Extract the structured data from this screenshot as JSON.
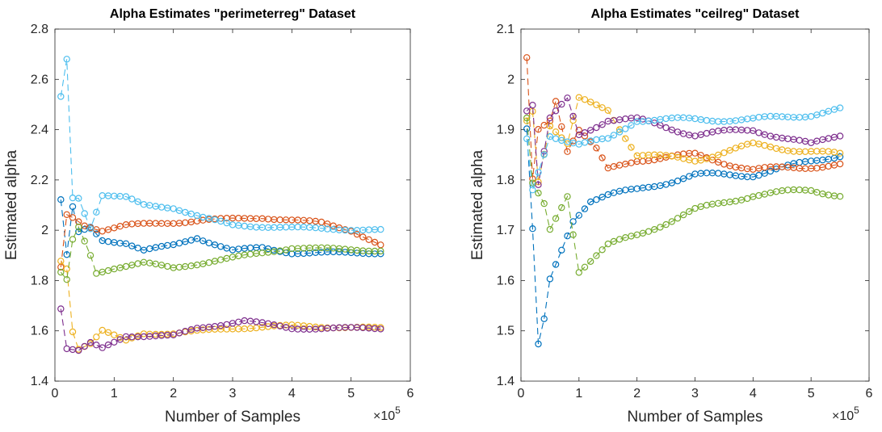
{
  "chart_data": [
    {
      "type": "line",
      "title": "Alpha Estimates \"perimeterreg\" Dataset",
      "xlabel": "Number of Samples",
      "ylabel": "Estimated alpha",
      "x_exponent_label": "×10",
      "x_exponent": "5",
      "xlim": [
        0,
        6
      ],
      "ylim": [
        1.4,
        2.8
      ],
      "xticks": [
        "0",
        "1",
        "2",
        "3",
        "4",
        "5",
        "6"
      ],
      "yticks": [
        "1.4",
        "1.6",
        "1.8",
        "2",
        "2.2",
        "2.4",
        "2.6",
        "2.8"
      ],
      "x_units_per_tick": 100000,
      "grid": false,
      "marker": "circle",
      "line_style": "dashed",
      "series": [
        {
          "color": "#0072BD",
          "keypoints": [
            [
              10000,
              2.12
            ],
            [
              20000,
              1.9
            ],
            [
              30000,
              2.09
            ],
            [
              40000,
              1.99
            ],
            [
              60000,
              2.01
            ],
            [
              80000,
              1.96
            ],
            [
              120000,
              1.95
            ],
            [
              150000,
              1.92
            ],
            [
              200000,
              1.94
            ],
            [
              240000,
              1.97
            ],
            [
              300000,
              1.92
            ],
            [
              350000,
              1.93
            ],
            [
              400000,
              1.91
            ],
            [
              550000,
              1.91
            ]
          ]
        },
        {
          "color": "#D95319",
          "keypoints": [
            [
              10000,
              1.85
            ],
            [
              20000,
              2.06
            ],
            [
              30000,
              2.05
            ],
            [
              50000,
              2.02
            ],
            [
              80000,
              2.0
            ],
            [
              120000,
              2.02
            ],
            [
              200000,
              2.03
            ],
            [
              250000,
              2.04
            ],
            [
              350000,
              2.05
            ],
            [
              450000,
              2.03
            ],
            [
              500000,
              2.0
            ],
            [
              550000,
              1.94
            ]
          ]
        },
        {
          "color": "#EDB120",
          "keypoints": [
            [
              10000,
              1.88
            ],
            [
              20000,
              1.85
            ],
            [
              30000,
              1.6
            ],
            [
              40000,
              1.53
            ],
            [
              60000,
              1.55
            ],
            [
              80000,
              1.6
            ],
            [
              120000,
              1.56
            ],
            [
              150000,
              1.59
            ],
            [
              200000,
              1.59
            ],
            [
              300000,
              1.61
            ],
            [
              400000,
              1.62
            ],
            [
              550000,
              1.61
            ]
          ]
        },
        {
          "color": "#7E2F8E",
          "keypoints": [
            [
              10000,
              1.69
            ],
            [
              20000,
              1.53
            ],
            [
              40000,
              1.52
            ],
            [
              60000,
              1.55
            ],
            [
              80000,
              1.53
            ],
            [
              120000,
              1.58
            ],
            [
              200000,
              1.58
            ],
            [
              240000,
              1.61
            ],
            [
              320000,
              1.64
            ],
            [
              400000,
              1.61
            ],
            [
              550000,
              1.61
            ]
          ]
        },
        {
          "color": "#77AC30",
          "keypoints": [
            [
              10000,
              1.83
            ],
            [
              20000,
              1.8
            ],
            [
              30000,
              1.96
            ],
            [
              40000,
              2.01
            ],
            [
              60000,
              1.9
            ],
            [
              70000,
              1.83
            ],
            [
              100000,
              1.85
            ],
            [
              150000,
              1.87
            ],
            [
              200000,
              1.85
            ],
            [
              300000,
              1.89
            ],
            [
              400000,
              1.93
            ],
            [
              550000,
              1.92
            ]
          ]
        },
        {
          "color": "#4DBEEE",
          "keypoints": [
            [
              10000,
              2.53
            ],
            [
              20000,
              2.68
            ],
            [
              30000,
              2.13
            ],
            [
              40000,
              2.13
            ],
            [
              60000,
              2.01
            ],
            [
              80000,
              2.14
            ],
            [
              120000,
              2.13
            ],
            [
              150000,
              2.1
            ],
            [
              200000,
              2.09
            ],
            [
              250000,
              2.05
            ],
            [
              300000,
              2.02
            ],
            [
              400000,
              2.01
            ],
            [
              550000,
              2.0
            ]
          ]
        }
      ]
    },
    {
      "type": "line",
      "title": "Alpha Estimates \"ceilreg\" Dataset",
      "xlabel": "Number of Samples",
      "ylabel": "Estimated alpha",
      "x_exponent_label": "×10",
      "x_exponent": "5",
      "xlim": [
        0,
        6
      ],
      "ylim": [
        1.4,
        2.1
      ],
      "xticks": [
        "0",
        "1",
        "2",
        "3",
        "4",
        "5",
        "6"
      ],
      "yticks": [
        "1.4",
        "1.5",
        "1.6",
        "1.7",
        "1.8",
        "1.9",
        "2",
        "2.1"
      ],
      "x_units_per_tick": 100000,
      "grid": false,
      "marker": "circle",
      "line_style": "dashed",
      "series": [
        {
          "color": "#0072BD",
          "keypoints": [
            [
              10000,
              1.9
            ],
            [
              20000,
              1.7
            ],
            [
              30000,
              1.47
            ],
            [
              40000,
              1.52
            ],
            [
              50000,
              1.6
            ],
            [
              70000,
              1.66
            ],
            [
              90000,
              1.72
            ],
            [
              120000,
              1.76
            ],
            [
              150000,
              1.77
            ],
            [
              200000,
              1.78
            ],
            [
              300000,
              1.81
            ],
            [
              400000,
              1.81
            ],
            [
              550000,
              1.85
            ]
          ]
        },
        {
          "color": "#D95319",
          "keypoints": [
            [
              10000,
              2.04
            ],
            [
              20000,
              1.8
            ],
            [
              30000,
              1.9
            ],
            [
              50000,
              1.92
            ],
            [
              60000,
              1.96
            ],
            [
              80000,
              1.86
            ],
            [
              100000,
              1.9
            ],
            [
              130000,
              1.86
            ],
            [
              150000,
              1.82
            ],
            [
              200000,
              1.84
            ],
            [
              300000,
              1.85
            ],
            [
              400000,
              1.82
            ],
            [
              550000,
              1.83
            ]
          ]
        },
        {
          "color": "#EDB120",
          "keypoints": [
            [
              10000,
              1.92
            ],
            [
              20000,
              1.94
            ],
            [
              30000,
              1.8
            ],
            [
              50000,
              1.91
            ],
            [
              80000,
              1.87
            ],
            [
              100000,
              1.96
            ],
            [
              150000,
              1.94
            ],
            [
              200000,
              1.85
            ],
            [
              300000,
              1.84
            ],
            [
              400000,
              1.87
            ],
            [
              550000,
              1.85
            ]
          ]
        },
        {
          "color": "#7E2F8E",
          "keypoints": [
            [
              10000,
              1.94
            ],
            [
              20000,
              1.95
            ],
            [
              30000,
              1.79
            ],
            [
              50000,
              1.92
            ],
            [
              80000,
              1.96
            ],
            [
              100000,
              1.89
            ],
            [
              150000,
              1.92
            ],
            [
              200000,
              1.92
            ],
            [
              300000,
              1.89
            ],
            [
              400000,
              1.9
            ],
            [
              500000,
              1.87
            ],
            [
              550000,
              1.89
            ]
          ]
        },
        {
          "color": "#77AC30",
          "keypoints": [
            [
              10000,
              1.92
            ],
            [
              20000,
              1.79
            ],
            [
              40000,
              1.75
            ],
            [
              50000,
              1.7
            ],
            [
              80000,
              1.77
            ],
            [
              100000,
              1.62
            ],
            [
              150000,
              1.67
            ],
            [
              200000,
              1.69
            ],
            [
              300000,
              1.74
            ],
            [
              400000,
              1.77
            ],
            [
              500000,
              1.78
            ],
            [
              550000,
              1.77
            ]
          ]
        },
        {
          "color": "#4DBEEE",
          "keypoints": [
            [
              10000,
              1.88
            ],
            [
              20000,
              1.78
            ],
            [
              50000,
              1.89
            ],
            [
              100000,
              1.87
            ],
            [
              150000,
              1.88
            ],
            [
              200000,
              1.92
            ],
            [
              300000,
              1.92
            ],
            [
              400000,
              1.92
            ],
            [
              500000,
              1.93
            ],
            [
              550000,
              1.94
            ]
          ]
        }
      ]
    }
  ]
}
